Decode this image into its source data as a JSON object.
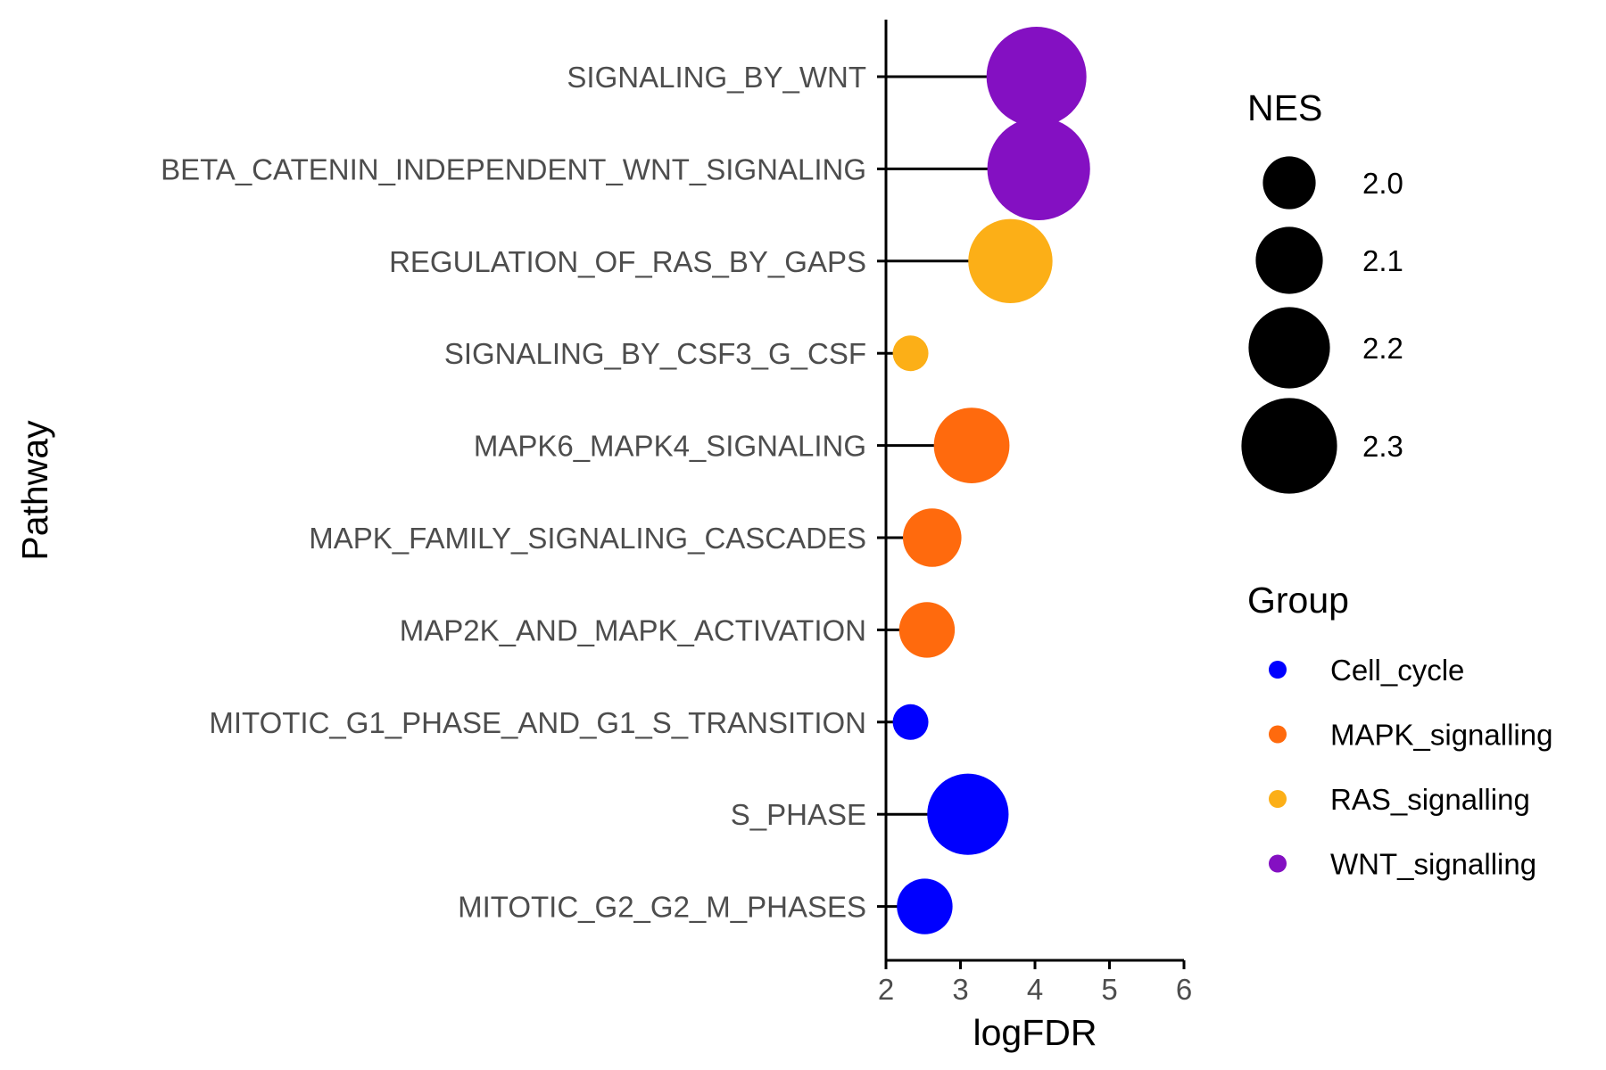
{
  "chart_data": {
    "type": "scatter",
    "subtype": "lollipop",
    "xlabel": "logFDR",
    "ylabel": "Pathway",
    "xlim": [
      2,
      6
    ],
    "x_ticks": [
      "2",
      "3",
      "4",
      "5",
      "6"
    ],
    "grid": false,
    "points": [
      {
        "pathway": "SIGNALING_BY_WNT",
        "logFDR": 4.02,
        "NES": 2.33,
        "group": "WNT_signalling"
      },
      {
        "pathway": "BETA_CATENIN_INDEPENDENT_WNT_SIGNALING",
        "logFDR": 4.05,
        "NES": 2.35,
        "group": "WNT_signalling"
      },
      {
        "pathway": "REGULATION_OF_RAS_BY_GAPS",
        "logFDR": 3.67,
        "NES": 2.22,
        "group": "RAS_signalling"
      },
      {
        "pathway": "SIGNALING_BY_CSF3_G_CSF",
        "logFDR": 2.33,
        "NES": 1.88,
        "group": "RAS_signalling"
      },
      {
        "pathway": "MAPK6_MAPK4_SIGNALING",
        "logFDR": 3.15,
        "NES": 2.16,
        "group": "MAPK_signalling"
      },
      {
        "pathway": "MAPK_FAMILY_SIGNALING_CASCADES",
        "logFDR": 2.62,
        "NES": 2.04,
        "group": "MAPK_signalling"
      },
      {
        "pathway": "MAP2K_AND_MAPK_ACTIVATION",
        "logFDR": 2.55,
        "NES": 2.02,
        "group": "MAPK_signalling"
      },
      {
        "pathway": "MITOTIC_G1_PHASE_AND_G1_S_TRANSITION",
        "logFDR": 2.33,
        "NES": 1.88,
        "group": "Cell_cycle"
      },
      {
        "pathway": "S_PHASE",
        "logFDR": 3.1,
        "NES": 2.2,
        "group": "Cell_cycle"
      },
      {
        "pathway": "MITOTIC_G2_G2_M_PHASES",
        "logFDR": 2.52,
        "NES": 2.02,
        "group": "Cell_cycle"
      }
    ],
    "size_legend": {
      "title": "NES",
      "entries": [
        {
          "label": "2.0",
          "value": 2.0
        },
        {
          "label": "2.1",
          "value": 2.1
        },
        {
          "label": "2.2",
          "value": 2.2
        },
        {
          "label": "2.3",
          "value": 2.3
        }
      ]
    },
    "color_legend": {
      "title": "Group",
      "entries": [
        {
          "label": "Cell_cycle",
          "color": "#0000ff"
        },
        {
          "label": "MAPK_signalling",
          "color": "#ff6a0d"
        },
        {
          "label": "RAS_signalling",
          "color": "#fcaf17"
        },
        {
          "label": "WNT_signalling",
          "color": "#8410c2"
        }
      ]
    },
    "legend_position": "right"
  }
}
